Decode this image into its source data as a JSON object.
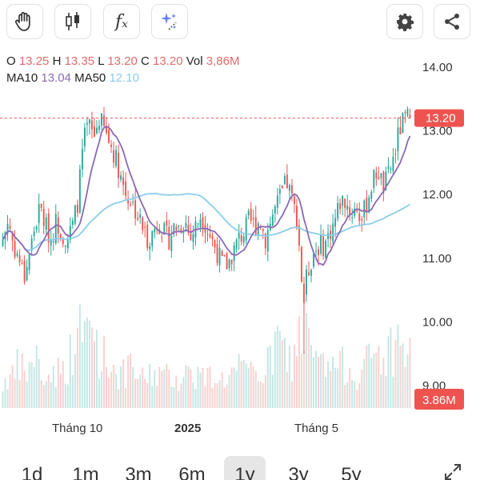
{
  "toolbar": {
    "left_tools": [
      "hand-icon",
      "candlestick-icon",
      "function-icon",
      "magic-sparkle-icon"
    ],
    "right_tools": [
      "gear-icon",
      "share-icon"
    ],
    "function_glyph": "fₓ"
  },
  "ohlc": {
    "open_label": "O",
    "open": "13.25",
    "high_label": "H",
    "high": "13.35",
    "low_label": "L",
    "low": "13.20",
    "close_label": "C",
    "close": "13.20",
    "vol_label": "Vol",
    "vol": "3,86M"
  },
  "ma": {
    "ma10_label": "MA10",
    "ma10": "13.04",
    "ma50_label": "MA50",
    "ma50": "12.10"
  },
  "colors": {
    "up": "#26a69a",
    "down": "#ef5350",
    "ma10": "#8a6ab5",
    "ma50": "#8ccde8",
    "price_tag": "#ef5350",
    "text_red": "#e06b6b"
  },
  "chart_data": {
    "type": "candlestick",
    "price_axis": {
      "ticks": [
        "14.00",
        "13.00",
        "12.00",
        "11.00",
        "10.00",
        "9.00"
      ],
      "min": 8.9,
      "max": 14.1
    },
    "time_axis": {
      "labels": [
        "Tháng 10",
        "2025",
        "Tháng 5"
      ]
    },
    "last_price_tag": "13.20",
    "last_volume_tag": "3.86M",
    "close_path": [
      11.3,
      11.6,
      11.2,
      11.0,
      10.7,
      11.1,
      11.5,
      11.8,
      11.5,
      11.3,
      11.6,
      11.4,
      11.3,
      11.5,
      11.9,
      12.8,
      13.1,
      12.9,
      13.2,
      13.0,
      12.8,
      12.6,
      12.3,
      12.0,
      11.9,
      11.7,
      11.5,
      11.3,
      11.4,
      11.6,
      11.4,
      11.3,
      11.5,
      11.5,
      11.6,
      11.3,
      11.5,
      11.7,
      11.5,
      11.3,
      11.1,
      10.9,
      10.9,
      11.1,
      11.3,
      11.4,
      11.6,
      11.5,
      11.6,
      11.3,
      11.6,
      11.8,
      12.0,
      12.2,
      11.9,
      11.6,
      10.4,
      10.8,
      11.1,
      11.2,
      11.2,
      11.4,
      11.6,
      11.9,
      11.9,
      11.7,
      11.8,
      11.6,
      11.9,
      12.2,
      12.4,
      12.1,
      12.3,
      12.6,
      13.0,
      13.2,
      13.2
    ],
    "volume_path": [
      0.2,
      0.3,
      0.25,
      0.4,
      0.3,
      0.35,
      0.5,
      0.3,
      0.25,
      0.3,
      0.35,
      0.3,
      0.4,
      0.5,
      0.7,
      0.6,
      0.75,
      0.7,
      0.5,
      0.45,
      0.4,
      0.35,
      0.3,
      0.3,
      0.35,
      0.3,
      0.25,
      0.3,
      0.3,
      0.35,
      0.25,
      0.3,
      0.3,
      0.25,
      0.3,
      0.35,
      0.3,
      0.3,
      0.25,
      0.3,
      0.3,
      0.25,
      0.3,
      0.3,
      0.35,
      0.3,
      0.3,
      0.35,
      0.3,
      0.35,
      0.4,
      0.6,
      0.55,
      0.45,
      0.4,
      0.6,
      0.75,
      0.55,
      0.45,
      0.4,
      0.35,
      0.35,
      0.4,
      0.35,
      0.4,
      0.35,
      0.3,
      0.35,
      0.4,
      0.45,
      0.5,
      0.45,
      0.5,
      0.55,
      0.6,
      0.5,
      0.45
    ],
    "ma10_value": 13.04,
    "ma50_value": 12.1
  },
  "periods": {
    "items": [
      "1d",
      "1m",
      "3m",
      "6m",
      "1y",
      "3y",
      "5y"
    ],
    "active": "1y"
  }
}
